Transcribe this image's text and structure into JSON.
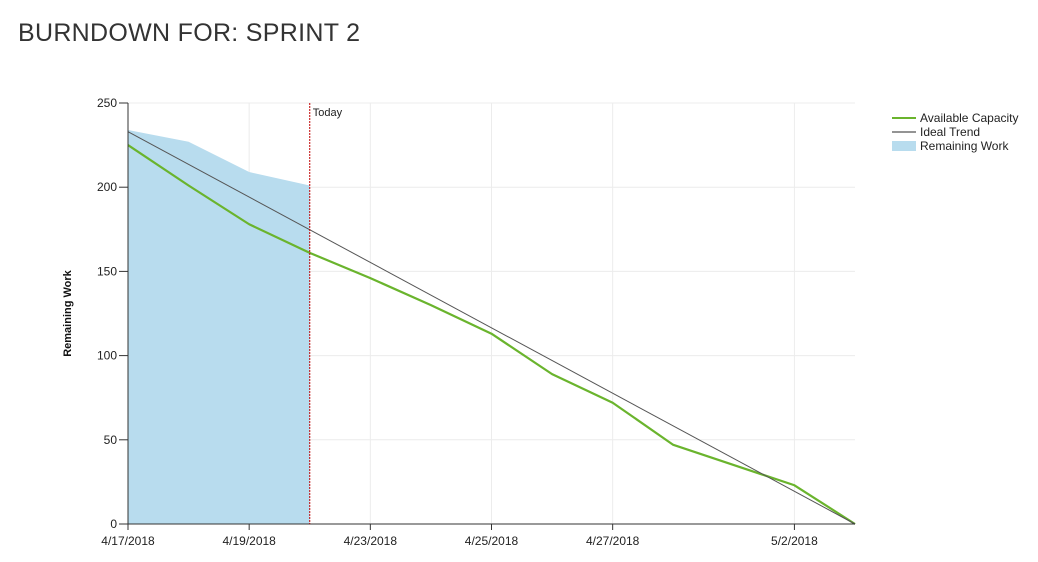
{
  "page": {
    "title": "BURNDOWN FOR: SPRINT 2"
  },
  "chart_data": {
    "type": "line",
    "title": "",
    "xlabel": "",
    "ylabel": "Remaining Work",
    "x_start": "4/17/2018",
    "x_end": "5/3/2018",
    "ylim": [
      0,
      250
    ],
    "yticks": [
      0,
      50,
      100,
      150,
      200,
      250
    ],
    "xticks": [
      "4/17/2018",
      "4/19/2018",
      "4/23/2018",
      "4/25/2018",
      "4/27/2018",
      "5/2/2018"
    ],
    "grid": true,
    "legend_position": "top-right",
    "today_marker": {
      "label": "Today",
      "x": "4/20/2018",
      "color": "#c00000"
    },
    "series": [
      {
        "name": "Available Capacity",
        "type": "line",
        "color": "#6ab42d",
        "points": [
          {
            "x": "4/17/2018",
            "y": 225
          },
          {
            "x": "4/18/2018",
            "y": 201
          },
          {
            "x": "4/19/2018",
            "y": 178
          },
          {
            "x": "4/20/2018",
            "y": 161
          },
          {
            "x": "4/23/2018",
            "y": 146
          },
          {
            "x": "4/24/2018",
            "y": 130
          },
          {
            "x": "4/25/2018",
            "y": 113
          },
          {
            "x": "4/26/2018",
            "y": 89
          },
          {
            "x": "4/27/2018",
            "y": 72
          },
          {
            "x": "4/30/2018",
            "y": 47
          },
          {
            "x": "5/2/2018",
            "y": 23
          },
          {
            "x": "5/3/2018",
            "y": 0
          }
        ]
      },
      {
        "name": "Ideal Trend",
        "type": "line",
        "color": "#555555",
        "points": [
          {
            "x": "4/17/2018",
            "y": 233
          },
          {
            "x": "5/3/2018",
            "y": 0
          }
        ]
      },
      {
        "name": "Remaining Work",
        "type": "area",
        "color": "#b8dcee",
        "points": [
          {
            "x": "4/17/2018",
            "y": 234
          },
          {
            "x": "4/18/2018",
            "y": 227
          },
          {
            "x": "4/19/2018",
            "y": 209
          },
          {
            "x": "4/20/2018",
            "y": 201
          }
        ]
      }
    ]
  }
}
